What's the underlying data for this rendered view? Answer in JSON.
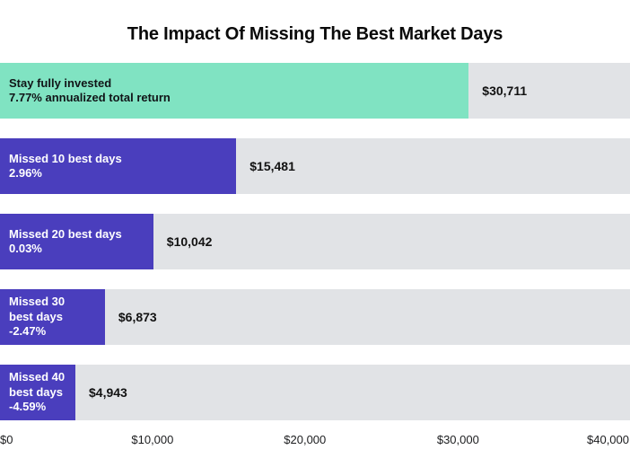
{
  "page": {
    "title": "The Impact Of Missing The Best Market Days"
  },
  "colors": {
    "highlight_bar": "#80E3C2",
    "primary_bar": "#4A3EBD",
    "track": "#E1E3E6",
    "title_text": "#0A0A0A",
    "bar_text_dark": "#101417",
    "bar_text_light": "#FFFFFF",
    "value_text": "#121212",
    "axis_text": "#1B1C1E"
  },
  "chart_data": {
    "type": "bar",
    "orientation": "horizontal",
    "title": "The Impact Of Missing The Best Market Days",
    "xlabel": "",
    "ylabel": "",
    "xlim": [
      0,
      40000
    ],
    "x_ticks": [
      "$0",
      "$10,000",
      "$20,000",
      "$30,000",
      "$40,000"
    ],
    "grid": false,
    "legend": false,
    "rows": [
      {
        "label_lines": [
          "Stay fully invested",
          "7.77% annualized total return"
        ],
        "value": 30711,
        "value_label": "$30,711",
        "color": "#80E3C2",
        "text_color": "#101417"
      },
      {
        "label_lines": [
          "Missed 10 best days",
          "2.96%"
        ],
        "value": 15481,
        "value_label": "$15,481",
        "color": "#4A3EBD",
        "text_color": "#FFFFFF"
      },
      {
        "label_lines": [
          "Missed 20 best days",
          "0.03%"
        ],
        "value": 10042,
        "value_label": "$10,042",
        "color": "#4A3EBD",
        "text_color": "#FFFFFF"
      },
      {
        "label_lines": [
          "Missed 30",
          "best days",
          "-2.47%"
        ],
        "value": 6873,
        "value_label": "$6,873",
        "color": "#4A3EBD",
        "text_color": "#FFFFFF"
      },
      {
        "label_lines": [
          "Missed 40",
          "best days",
          "-4.59%"
        ],
        "value": 4943,
        "value_label": "$4,943",
        "color": "#4A3EBD",
        "text_color": "#FFFFFF"
      }
    ]
  }
}
